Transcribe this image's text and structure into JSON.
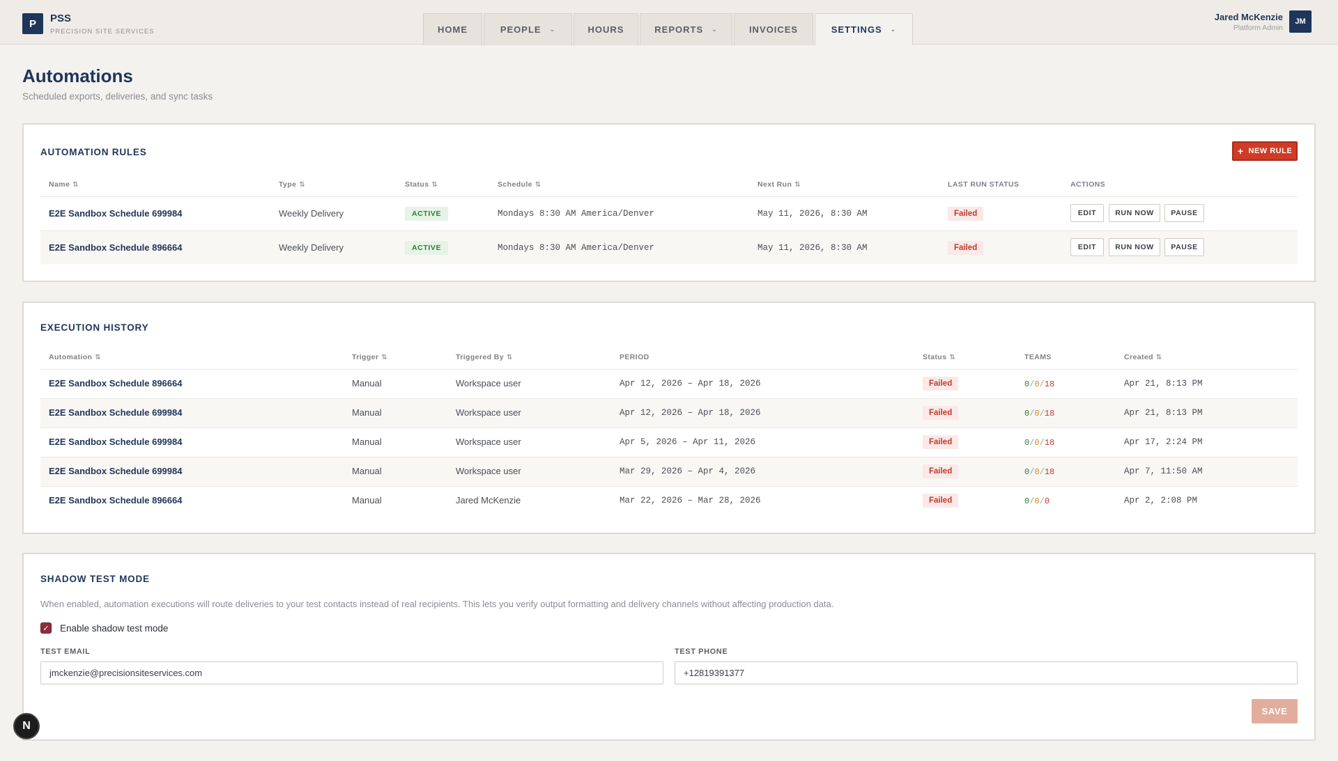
{
  "brand": {
    "logo_letter": "P",
    "name": "PSS",
    "subtitle": "PRECISION SITE SERVICES"
  },
  "nav": {
    "tabs": [
      {
        "label": "HOME",
        "has_dropdown": false,
        "active": false
      },
      {
        "label": "PEOPLE",
        "has_dropdown": true,
        "active": false
      },
      {
        "label": "HOURS",
        "has_dropdown": false,
        "active": false
      },
      {
        "label": "REPORTS",
        "has_dropdown": true,
        "active": false
      },
      {
        "label": "INVOICES",
        "has_dropdown": false,
        "active": false
      },
      {
        "label": "SETTINGS",
        "has_dropdown": true,
        "active": true
      }
    ]
  },
  "user": {
    "name": "Jared McKenzie",
    "role": "Platform Admin",
    "initials": "JM"
  },
  "page": {
    "title": "Automations",
    "subtitle": "Scheduled exports, deliveries, and sync tasks"
  },
  "rules": {
    "title": "AUTOMATION RULES",
    "new_rule_label": "NEW RULE",
    "columns": [
      "Name",
      "Type",
      "Status",
      "Schedule",
      "Next Run",
      "LAST RUN STATUS",
      "ACTIONS"
    ],
    "rows": [
      {
        "name": "E2E Sandbox Schedule 699984",
        "type": "Weekly Delivery",
        "status": "ACTIVE",
        "schedule": "Mondays 8:30 AM America/Denver",
        "next_run": "May 11, 2026, 8:30 AM",
        "last_run": "Failed"
      },
      {
        "name": "E2E Sandbox Schedule 896664",
        "type": "Weekly Delivery",
        "status": "ACTIVE",
        "schedule": "Mondays 8:30 AM America/Denver",
        "next_run": "May 11, 2026, 8:30 AM",
        "last_run": "Failed"
      }
    ],
    "actions": {
      "edit": "EDIT",
      "run_now": "RUN NOW",
      "pause": "PAUSE"
    }
  },
  "history": {
    "title": "EXECUTION HISTORY",
    "columns": [
      "Automation",
      "Trigger",
      "Triggered By",
      "PERIOD",
      "Status",
      "TEAMS",
      "Created"
    ],
    "rows": [
      {
        "automation": "E2E Sandbox Schedule 896664",
        "trigger": "Manual",
        "by": "Workspace user",
        "period": "Apr 12, 2026 – Apr 18, 2026",
        "status": "Failed",
        "ok": "0",
        "partial": "0",
        "failed": "18",
        "created": "Apr 21, 8:13 PM"
      },
      {
        "automation": "E2E Sandbox Schedule 699984",
        "trigger": "Manual",
        "by": "Workspace user",
        "period": "Apr 12, 2026 – Apr 18, 2026",
        "status": "Failed",
        "ok": "0",
        "partial": "0",
        "failed": "18",
        "created": "Apr 21, 8:13 PM"
      },
      {
        "automation": "E2E Sandbox Schedule 699984",
        "trigger": "Manual",
        "by": "Workspace user",
        "period": "Apr 5, 2026 – Apr 11, 2026",
        "status": "Failed",
        "ok": "0",
        "partial": "0",
        "failed": "18",
        "created": "Apr 17, 2:24 PM"
      },
      {
        "automation": "E2E Sandbox Schedule 699984",
        "trigger": "Manual",
        "by": "Workspace user",
        "period": "Mar 29, 2026 – Apr 4, 2026",
        "status": "Failed",
        "ok": "0",
        "partial": "0",
        "failed": "18",
        "created": "Apr 7, 11:50 AM"
      },
      {
        "automation": "E2E Sandbox Schedule 896664",
        "trigger": "Manual",
        "by": "Jared McKenzie",
        "period": "Mar 22, 2026 – Mar 28, 2026",
        "status": "Failed",
        "ok": "0",
        "partial": "0",
        "failed": "0",
        "created": "Apr 2, 2:08 PM"
      }
    ]
  },
  "shadow": {
    "title": "SHADOW TEST MODE",
    "description": "When enabled, automation executions will route deliveries to your test contacts instead of real recipients. This lets you verify output formatting and delivery channels without affecting production data.",
    "checkbox_label": "Enable shadow test mode",
    "checked": true,
    "email_label": "TEST EMAIL",
    "email_value": "jmckenzie@precisionsiteservices.com",
    "phone_label": "TEST PHONE",
    "phone_value": "+12819391377",
    "save_label": "SAVE"
  },
  "fab": {
    "letter": "N"
  },
  "colors": {
    "brand": "#1f3559",
    "accent": "#cf3b25",
    "success": "#2e7d32",
    "danger": "#c0392b"
  }
}
